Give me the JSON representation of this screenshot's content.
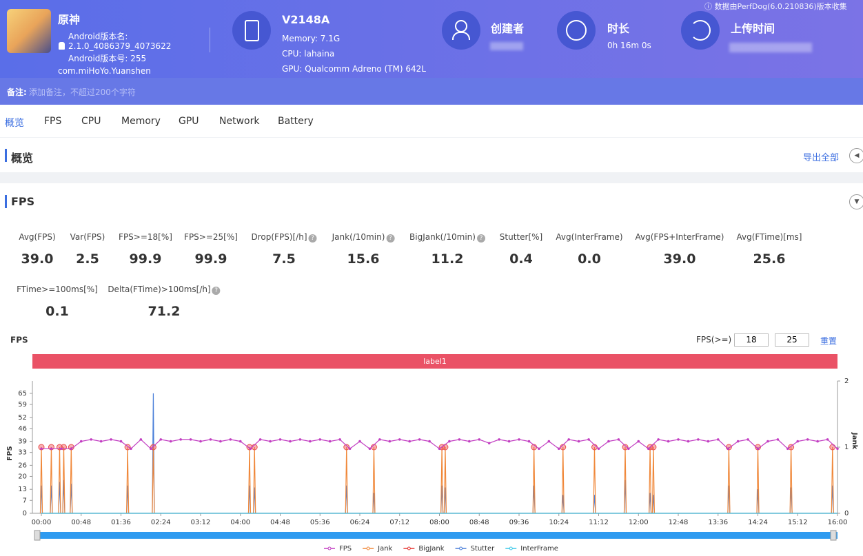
{
  "header": {
    "app_name": "原神",
    "version_name_label": "Android版本名:",
    "version_name": "2.1.0_4086379_4073622",
    "version_code": "Android版本号: 255",
    "package": "com.miHoYo.Yuanshen",
    "device": "V2148A",
    "memory": "Memory: 7.1G",
    "cpu": "CPU: lahaina",
    "gpu": "GPU: Qualcomm Adreno (TM) 642L",
    "creator_label": "创建者",
    "duration_label": "时长",
    "duration": "0h 16m 0s",
    "upload_label": "上传时间",
    "source_note": "数据由PerfDog(6.0.210836)版本收集",
    "remark_label": "备注:",
    "remark_placeholder": "添加备注，不超过200个字符"
  },
  "tabs": [
    "概览",
    "FPS",
    "CPU",
    "Memory",
    "GPU",
    "Network",
    "Battery"
  ],
  "overview": {
    "title": "概览",
    "export": "导出全部"
  },
  "fps_section": {
    "title": "FPS",
    "metrics": [
      {
        "label": "Avg(FPS)",
        "value": "39.0"
      },
      {
        "label": "Var(FPS)",
        "value": "2.5"
      },
      {
        "label": "FPS>=18[%]",
        "value": "99.9"
      },
      {
        "label": "FPS>=25[%]",
        "value": "99.9"
      },
      {
        "label": "Drop(FPS)[/h]",
        "value": "7.5",
        "help": true
      },
      {
        "label": "Jank(/10min)",
        "value": "15.6",
        "help": true
      },
      {
        "label": "BigJank(/10min)",
        "value": "11.2",
        "help": true
      },
      {
        "label": "Stutter[%]",
        "value": "0.4"
      },
      {
        "label": "Avg(InterFrame)",
        "value": "0.0"
      },
      {
        "label": "Avg(FPS+InterFrame)",
        "value": "39.0"
      },
      {
        "label": "Avg(FTime)[ms]",
        "value": "25.6"
      },
      {
        "label": "FTime>=100ms[%]",
        "value": "0.1"
      },
      {
        "label": "Delta(FTime)>100ms[/h]",
        "value": "71.2",
        "help": true
      }
    ],
    "threshold_label": "FPS(>=)",
    "thresholds": [
      "18",
      "25"
    ],
    "reset": "重置"
  },
  "chart_data": {
    "type": "line",
    "title": "FPS",
    "band_label": "label1",
    "ylabel": "FPS",
    "y2label": "Jank",
    "xlim": [
      0,
      960
    ],
    "ylim": [
      0,
      71.7
    ],
    "y2lim": [
      0,
      2
    ],
    "xticks": [
      {
        "value": 0,
        "label": "00:00"
      },
      {
        "value": 48,
        "label": "00:48"
      },
      {
        "value": 96,
        "label": "01:36"
      },
      {
        "value": 144,
        "label": "02:24"
      },
      {
        "value": 192,
        "label": "03:12"
      },
      {
        "value": 240,
        "label": "04:00"
      },
      {
        "value": 288,
        "label": "04:48"
      },
      {
        "value": 336,
        "label": "05:36"
      },
      {
        "value": 384,
        "label": "06:24"
      },
      {
        "value": 432,
        "label": "07:12"
      },
      {
        "value": 480,
        "label": "08:00"
      },
      {
        "value": 528,
        "label": "08:48"
      },
      {
        "value": 576,
        "label": "09:36"
      },
      {
        "value": 624,
        "label": "10:24"
      },
      {
        "value": 672,
        "label": "11:12"
      },
      {
        "value": 720,
        "label": "12:00"
      },
      {
        "value": 768,
        "label": "12:48"
      },
      {
        "value": 816,
        "label": "13:36"
      },
      {
        "value": 864,
        "label": "14:24"
      },
      {
        "value": 912,
        "label": "15:12"
      },
      {
        "value": 960,
        "label": "16:00"
      }
    ],
    "yticks": [
      0,
      7,
      13,
      20,
      26,
      33,
      39,
      46,
      52,
      59,
      65
    ],
    "y2ticks": [
      0,
      1,
      2
    ],
    "series": [
      {
        "name": "FPS",
        "color": "#c23fc2",
        "style": "line",
        "markers": true,
        "x": [
          0,
          12,
          24,
          36,
          48,
          60,
          72,
          84,
          96,
          108,
          120,
          132,
          144,
          156,
          168,
          180,
          192,
          204,
          216,
          228,
          240,
          252,
          264,
          276,
          288,
          300,
          312,
          324,
          336,
          348,
          360,
          372,
          384,
          396,
          408,
          420,
          432,
          444,
          456,
          468,
          480,
          492,
          504,
          516,
          528,
          540,
          552,
          564,
          576,
          588,
          600,
          612,
          624,
          636,
          648,
          660,
          672,
          684,
          696,
          708,
          720,
          732,
          744,
          756,
          768,
          780,
          792,
          804,
          816,
          828,
          840,
          852,
          864,
          876,
          888,
          900,
          912,
          924,
          936,
          948,
          960
        ],
        "values": [
          35,
          35,
          35,
          35,
          39,
          40,
          39,
          40,
          39,
          35,
          40,
          35,
          40,
          39,
          40,
          40,
          39,
          40,
          39,
          40,
          39,
          35,
          40,
          39,
          40,
          39,
          40,
          39,
          40,
          39,
          40,
          35,
          39,
          35,
          40,
          39,
          40,
          39,
          40,
          39,
          35,
          39,
          40,
          39,
          40,
          38,
          40,
          39,
          40,
          39,
          35,
          39,
          35,
          40,
          39,
          40,
          35,
          39,
          40,
          35,
          39,
          35,
          40,
          39,
          40,
          39,
          40,
          39,
          40,
          35,
          39,
          40,
          35,
          39,
          40,
          35,
          39,
          40,
          39,
          40,
          35
        ]
      },
      {
        "name": "Jank",
        "color": "#f0883a",
        "style": "stem",
        "axis": "y2",
        "dots": true,
        "x": [
          0,
          12,
          22,
          27,
          36,
          104,
          135,
          251,
          257,
          368,
          401,
          483,
          487,
          594,
          629,
          667,
          704,
          734,
          738,
          829,
          864,
          904,
          954
        ],
        "values": [
          1,
          1,
          1,
          1,
          1,
          1,
          1,
          1,
          1,
          1,
          1,
          1,
          1,
          1,
          1,
          1,
          1,
          1,
          1,
          1,
          1,
          1,
          1
        ]
      },
      {
        "name": "BigJank",
        "color": "#e53935",
        "style": "line",
        "x": [
          0,
          960
        ],
        "values": [
          0,
          0
        ]
      },
      {
        "name": "Stutter",
        "color": "#4a7fd9",
        "style": "stem",
        "x": [
          0,
          12,
          22,
          27,
          36,
          104,
          135,
          251,
          257,
          368,
          401,
          483,
          487,
          594,
          629,
          667,
          704,
          734,
          738,
          829,
          864,
          904,
          954
        ],
        "values": [
          15,
          15,
          17,
          18,
          16,
          15,
          65,
          15,
          14,
          15,
          11,
          15,
          14,
          15,
          10,
          10,
          18,
          11,
          10,
          15,
          13,
          14,
          15
        ]
      },
      {
        "name": "InterFrame",
        "color": "#3cc8e8",
        "style": "line",
        "x": [
          0,
          960
        ],
        "values": [
          0,
          0
        ]
      }
    ]
  }
}
